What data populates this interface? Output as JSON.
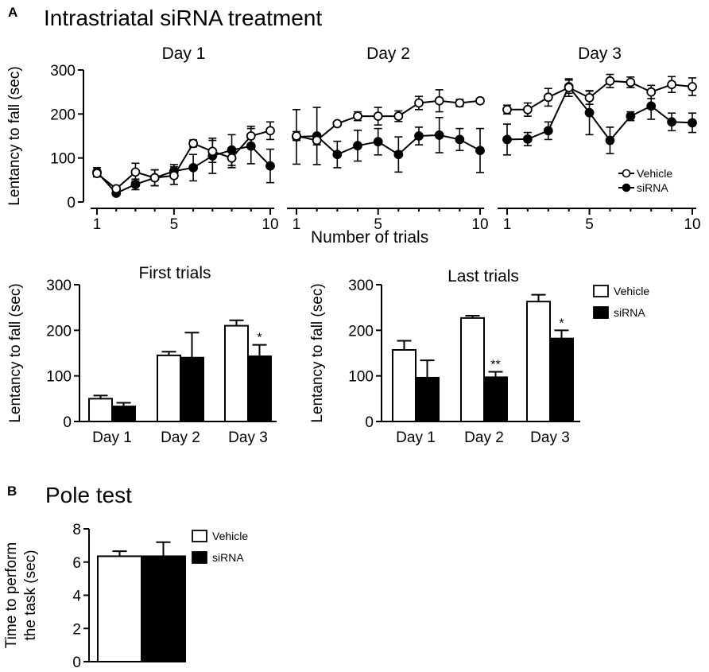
{
  "panel_a": {
    "label": "A",
    "title": "Intrastriatal siRNA treatment",
    "xlabel_shared": "Number of trials",
    "colors": {
      "vehicle_fill": "#ffffff",
      "sirna_fill": "#000000",
      "stroke": "#000000"
    }
  },
  "panel_b": {
    "label": "B",
    "title": "Pole test"
  },
  "chart_data": [
    {
      "id": "day1",
      "type": "line",
      "title": "Day 1",
      "xlabel": "",
      "ylabel": "Lentancy to fall (sec)",
      "ylim": [
        0,
        300
      ],
      "yticks": [
        0,
        100,
        200,
        300
      ],
      "xlim": [
        1,
        10
      ],
      "xticks": [
        1,
        5,
        10
      ],
      "x": [
        1,
        2,
        3,
        4,
        5,
        6,
        7,
        8,
        9,
        10
      ],
      "series": [
        {
          "name": "Vehicle",
          "marker": "open-circle",
          "values": [
            65,
            30,
            68,
            55,
            60,
            133,
            115,
            100,
            150,
            162
          ],
          "errors": [
            8,
            5,
            20,
            18,
            20,
            8,
            25,
            22,
            22,
            20
          ]
        },
        {
          "name": "siRNA",
          "marker": "filled-circle",
          "values": [
            68,
            20,
            40,
            55,
            70,
            78,
            105,
            118,
            127,
            82
          ],
          "errors": [
            10,
            5,
            12,
            18,
            15,
            30,
            40,
            35,
            40,
            38
          ]
        }
      ]
    },
    {
      "id": "day2",
      "type": "line",
      "title": "Day 2",
      "xlabel": "",
      "ylabel": "",
      "ylim": [
        0,
        300
      ],
      "xlim": [
        1,
        10
      ],
      "xticks": [
        1,
        5,
        10
      ],
      "x": [
        1,
        2,
        3,
        4,
        5,
        6,
        7,
        8,
        9,
        10
      ],
      "series": [
        {
          "name": "Vehicle",
          "marker": "open-circle",
          "values": [
            150,
            140,
            178,
            195,
            195,
            195,
            225,
            230,
            225,
            230
          ],
          "errors": [
            10,
            10,
            5,
            10,
            20,
            12,
            15,
            25,
            8,
            5
          ]
        },
        {
          "name": "siRNA",
          "marker": "filled-circle",
          "values": [
            148,
            150,
            108,
            128,
            137,
            108,
            150,
            152,
            142,
            117
          ],
          "errors": [
            62,
            65,
            30,
            35,
            30,
            40,
            20,
            40,
            25,
            50
          ]
        }
      ]
    },
    {
      "id": "day3",
      "type": "line",
      "title": "Day 3",
      "xlabel": "",
      "ylabel": "",
      "ylim": [
        0,
        300
      ],
      "xlim": [
        1,
        10
      ],
      "xticks": [
        1,
        5,
        10
      ],
      "x": [
        1,
        2,
        3,
        4,
        5,
        6,
        7,
        8,
        9,
        10
      ],
      "legend": [
        "Vehicle",
        "siRNA"
      ],
      "series": [
        {
          "name": "Vehicle",
          "marker": "open-circle",
          "values": [
            210,
            210,
            238,
            260,
            237,
            275,
            272,
            250,
            267,
            262
          ],
          "errors": [
            10,
            15,
            20,
            20,
            15,
            15,
            12,
            15,
            18,
            20
          ]
        },
        {
          "name": "siRNA",
          "marker": "filled-circle",
          "values": [
            142,
            143,
            162,
            262,
            203,
            140,
            195,
            218,
            182,
            180
          ],
          "errors": [
            35,
            15,
            20,
            15,
            50,
            30,
            10,
            30,
            20,
            22
          ]
        }
      ]
    },
    {
      "id": "first_trials",
      "type": "bar",
      "title": "First trials",
      "ylabel": "Lentancy to fall (sec)",
      "ylim": [
        0,
        300
      ],
      "yticks": [
        0,
        100,
        200,
        300
      ],
      "categories": [
        "Day 1",
        "Day 2",
        "Day 3"
      ],
      "series": [
        {
          "name": "Vehicle",
          "values": [
            50,
            145,
            210
          ],
          "errors": [
            7,
            8,
            12
          ]
        },
        {
          "name": "siRNA",
          "values": [
            33,
            140,
            143
          ],
          "errors": [
            8,
            55,
            25
          ]
        }
      ],
      "annotations": [
        {
          "category": "Day 3",
          "series": "siRNA",
          "text": "*"
        }
      ]
    },
    {
      "id": "last_trials",
      "type": "bar",
      "title": "Last trials",
      "ylabel": "Lentancy to fall (sec)",
      "ylim": [
        0,
        300
      ],
      "yticks": [
        0,
        100,
        200,
        300
      ],
      "categories": [
        "Day 1",
        "Day 2",
        "Day 3"
      ],
      "legend": [
        "Vehicle",
        "siRNA"
      ],
      "series": [
        {
          "name": "Vehicle",
          "values": [
            157,
            227,
            263
          ],
          "errors": [
            20,
            5,
            15
          ]
        },
        {
          "name": "siRNA",
          "values": [
            96,
            97,
            182
          ],
          "errors": [
            38,
            12,
            18
          ]
        }
      ],
      "annotations": [
        {
          "category": "Day 2",
          "series": "siRNA",
          "text": "**"
        },
        {
          "category": "Day 3",
          "series": "siRNA",
          "text": "*"
        }
      ]
    },
    {
      "id": "pole_test",
      "type": "bar",
      "title": "",
      "ylabel": "Time to perform the task (sec)",
      "ylabel_lines": [
        "Time to perform",
        "the task (sec)"
      ],
      "ylim": [
        0,
        8
      ],
      "yticks": [
        0,
        2,
        4,
        6,
        8
      ],
      "categories": [
        ""
      ],
      "legend": [
        "Vehicle",
        "siRNA"
      ],
      "series": [
        {
          "name": "Vehicle",
          "values": [
            6.35
          ],
          "errors": [
            0.3
          ]
        },
        {
          "name": "siRNA",
          "values": [
            6.35
          ],
          "errors": [
            0.85
          ]
        }
      ]
    }
  ]
}
